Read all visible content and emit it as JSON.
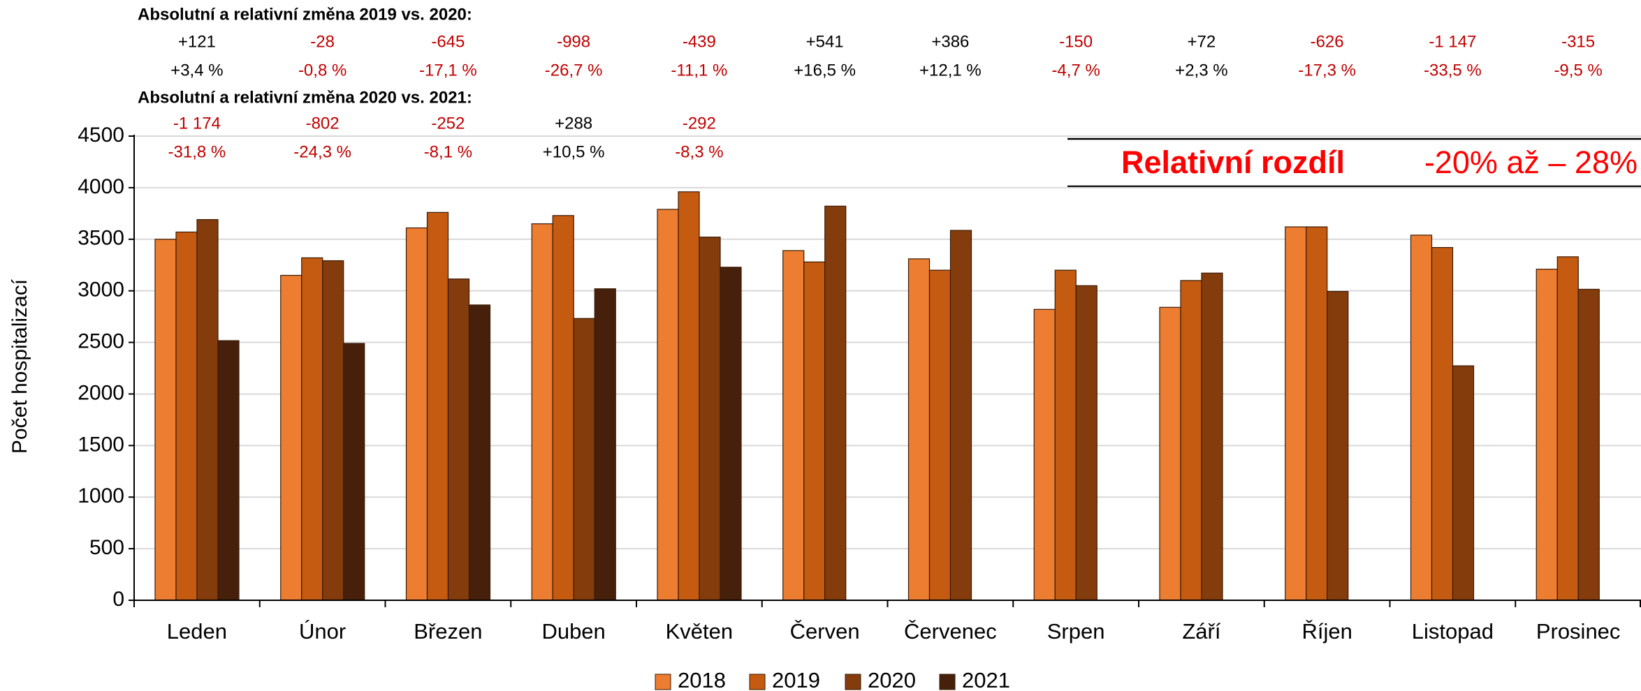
{
  "chart_data": {
    "type": "bar",
    "categories": [
      "Leden",
      "Únor",
      "Březen",
      "Duben",
      "Květen",
      "Červen",
      "Červenec",
      "Srpen",
      "Září",
      "Říjen",
      "Listopad",
      "Prosinec"
    ],
    "series": [
      {
        "name": "2018",
        "color": "#ED7D31",
        "values": [
          3500,
          3150,
          3610,
          3650,
          3790,
          3390,
          3310,
          2820,
          2840,
          3620,
          3540,
          3210
        ]
      },
      {
        "name": "2019",
        "color": "#C55A11",
        "values": [
          3570,
          3320,
          3760,
          3730,
          3960,
          3280,
          3200,
          3200,
          3100,
          3620,
          3420,
          3330
        ]
      },
      {
        "name": "2020",
        "color": "#843C0C",
        "values": [
          3691,
          3292,
          3115,
          2732,
          3521,
          3821,
          3586,
          3050,
          3172,
          2994,
          2273,
          3015
        ]
      },
      {
        "name": "2021",
        "color": "#46200A",
        "values": [
          2517,
          2490,
          2863,
          3020,
          3229,
          null,
          null,
          null,
          null,
          null,
          null,
          null
        ]
      }
    ],
    "y_label": "Počet hospitalizací",
    "ylim": [
      0,
      4500
    ],
    "yticks": [
      0,
      500,
      1000,
      1500,
      2000,
      2500,
      3000,
      3500,
      4000,
      4500
    ],
    "grid": true,
    "legend": "bottom",
    "comparison_colors": {
      "increase": "#000000",
      "decrease": "#C00000"
    },
    "comparisons": [
      {
        "title": "Absolutní a relativní změna 2019 vs. 2020:",
        "absolute": [
          "+121",
          "-28",
          "-645",
          "-998",
          "-439",
          "+541",
          "+386",
          "-150",
          "+72",
          "-626",
          "-1 147",
          "-315"
        ],
        "relative": [
          "+3,4 %",
          "-0,8 %",
          "-17,1 %",
          "-26,7 %",
          "-11,1 %",
          "+16,5 %",
          "+12,1 %",
          "-4,7 %",
          "+2,3 %",
          "-17,3 %",
          "-33,5 %",
          "-9,5 %"
        ]
      },
      {
        "title": "Absolutní a relativní změna 2020 vs. 2021:",
        "absolute": [
          "-1 174",
          "-802",
          "-252",
          "+288",
          "-292"
        ],
        "relative": [
          "-31,8 %",
          "-24,3 %",
          "-8,1 %",
          "+10,5 %",
          "-8,3 %"
        ]
      }
    ],
    "banner": {
      "label": "Relativní rozdíl",
      "range": "-20% až – 28%",
      "color": "#FF0000"
    }
  }
}
